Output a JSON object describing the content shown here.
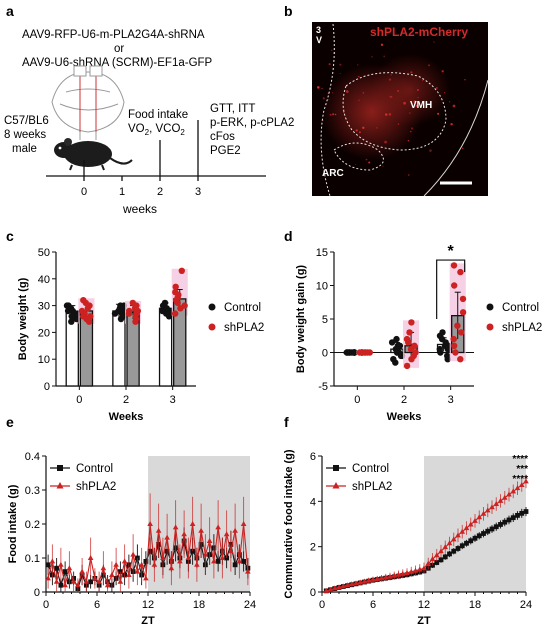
{
  "figure": {
    "panel_a": {
      "label": "a",
      "vector_line1": "AAV9-RFP-U6-m-PLA2G4A-shRNA",
      "vector_or": "or",
      "vector_line2": "AAV9-U6-shRNA (SCRM)-EF1a-GFP",
      "mouse_line1": "C57/BL6",
      "mouse_line2": "8 weeks",
      "mouse_line3": "male",
      "event_week2_line1": "Food intake",
      "event_week2_line2": "VO",
      "event_week2_line2b": "2",
      "event_week2_line2c": ", VCO",
      "event_week2_line2d": "2",
      "event_week3_line1": "GTT, ITT",
      "event_week3_line2": "p-ERK, p-cPLA2",
      "event_week3_line3": "cFos",
      "event_week3_line4": "PGE2",
      "timeline_ticks": [
        "0",
        "1",
        "2",
        "3"
      ],
      "timeline_label": "weeks"
    },
    "panel_b": {
      "label": "b",
      "title": "shPLA2-mCherry",
      "region_3v_a": "3",
      "region_3v_b": "V",
      "region_vmh": "VMH",
      "region_arc": "ARC"
    },
    "panel_c": {
      "label": "c"
    },
    "panel_d": {
      "label": "d",
      "significance": "*"
    },
    "panel_e": {
      "label": "e"
    },
    "panel_f": {
      "label": "f",
      "significance": [
        "****",
        "***",
        "****"
      ]
    },
    "colors": {
      "control": "#111111",
      "shpla2": "#cc2222",
      "shpla2_fill": "#f4c6de",
      "shade": "#d9d9d9",
      "bar_control": "#ffffff",
      "bar_shpla2": "#999999"
    }
  },
  "chart_data": [
    {
      "panel": "c",
      "type": "bar",
      "categories": [
        "0",
        "2",
        "3"
      ],
      "xlabel": "Weeks",
      "ylabel": "Body weight (g)",
      "ylim": [
        0,
        50
      ],
      "yticks": [
        0,
        10,
        20,
        30,
        40,
        50
      ],
      "legend_position": "right",
      "series": [
        {
          "name": "Control",
          "values": [
            27.5,
            28,
            29
          ],
          "error": [
            2.5,
            2.5,
            2
          ],
          "points": [
            [
              24,
              25,
              26,
              27,
              28,
              29,
              30,
              30,
              27,
              26,
              28
            ],
            [
              25,
              26,
              27,
              28,
              29,
              30,
              30,
              28,
              27,
              29,
              26
            ],
            [
              26,
              27,
              28,
              29,
              30,
              31,
              29,
              28,
              30,
              27,
              29
            ]
          ]
        },
        {
          "name": "shPLA2",
          "values": [
            28,
            27.5,
            32.5
          ],
          "error": [
            2.5,
            2.5,
            3.5
          ],
          "points": [
            [
              24,
              25,
              26,
              28,
              29,
              30,
              31,
              32,
              27,
              26
            ],
            [
              24,
              25,
              26,
              27,
              28,
              29,
              30,
              31,
              28,
              27
            ],
            [
              27,
              29,
              30,
              31,
              32,
              33,
              34,
              35,
              37,
              43
            ]
          ]
        }
      ]
    },
    {
      "panel": "d",
      "type": "bar",
      "categories": [
        "0",
        "2",
        "3"
      ],
      "xlabel": "Weeks",
      "ylabel": "Body weight gain (g)",
      "ylim": [
        -5,
        15
      ],
      "yticks": [
        -5,
        0,
        5,
        10,
        15
      ],
      "legend_position": "right",
      "series": [
        {
          "name": "Control",
          "values": [
            0,
            0.5,
            1.2
          ],
          "error": [
            0,
            1,
            1
          ],
          "points": [
            [
              0,
              0,
              0,
              0,
              0,
              0,
              0,
              0,
              0,
              0,
              0
            ],
            [
              -1.5,
              -1,
              -0.5,
              0,
              0.5,
              1,
              1.5,
              2,
              0,
              -0.5,
              1
            ],
            [
              -1,
              -0.5,
              0,
              0.5,
              1,
              1.5,
              2,
              2.5,
              3,
              1,
              0.5
            ]
          ]
        },
        {
          "name": "shPLA2",
          "values": [
            0,
            1,
            5.5
          ],
          "error": [
            0,
            2,
            3.5
          ],
          "points": [
            [
              0,
              0,
              0,
              0,
              0,
              0,
              0,
              0,
              0,
              0
            ],
            [
              -2,
              -1,
              -0.5,
              0,
              0.5,
              1,
              1.5,
              2,
              3,
              4.5
            ],
            [
              -1,
              0,
              1,
              2,
              3,
              4,
              6,
              8,
              10,
              12,
              13
            ]
          ]
        }
      ]
    },
    {
      "panel": "e",
      "type": "line",
      "xlabel": "ZT",
      "ylabel": "Food intake (g)",
      "xlim": [
        0,
        24
      ],
      "ylim": [
        0,
        0.4
      ],
      "xticks": [
        0,
        6,
        12,
        18,
        24
      ],
      "yticks": [
        0.0,
        0.1,
        0.2,
        0.3,
        0.4
      ],
      "dark_phase": [
        12,
        24
      ],
      "legend_position": "top-left",
      "x": [
        0.25,
        0.75,
        1.25,
        1.75,
        2.25,
        2.75,
        3.25,
        3.75,
        4.25,
        4.75,
        5.25,
        5.75,
        6.25,
        6.75,
        7.25,
        7.75,
        8.25,
        8.75,
        9.25,
        9.75,
        10.25,
        10.75,
        11.25,
        11.75,
        12.25,
        12.75,
        13.25,
        13.75,
        14.25,
        14.75,
        15.25,
        15.75,
        16.25,
        16.75,
        17.25,
        17.75,
        18.25,
        18.75,
        19.25,
        19.75,
        20.25,
        20.75,
        21.25,
        21.75,
        22.25,
        22.75,
        23.25,
        23.75
      ],
      "series": [
        {
          "name": "Control",
          "values": [
            0.08,
            0.05,
            0.07,
            0.02,
            0.06,
            0.03,
            0.04,
            0.01,
            0.05,
            0.02,
            0.03,
            0.04,
            0.02,
            0.05,
            0.03,
            0.02,
            0.04,
            0.06,
            0.05,
            0.08,
            0.06,
            0.1,
            0.05,
            0.09,
            0.12,
            0.1,
            0.14,
            0.08,
            0.12,
            0.09,
            0.13,
            0.1,
            0.15,
            0.09,
            0.12,
            0.1,
            0.14,
            0.08,
            0.11,
            0.13,
            0.09,
            0.12,
            0.1,
            0.14,
            0.08,
            0.11,
            0.09,
            0.07
          ],
          "error": [
            0.03,
            0.03,
            0.03,
            0.02,
            0.03,
            0.02,
            0.02,
            0.01,
            0.03,
            0.02,
            0.02,
            0.02,
            0.02,
            0.03,
            0.02,
            0.02,
            0.02,
            0.03,
            0.03,
            0.03,
            0.03,
            0.04,
            0.03,
            0.03,
            0.04,
            0.03,
            0.04,
            0.03,
            0.04,
            0.03,
            0.04,
            0.03,
            0.04,
            0.03,
            0.04,
            0.03,
            0.04,
            0.03,
            0.03,
            0.04,
            0.03,
            0.04,
            0.03,
            0.04,
            0.03,
            0.03,
            0.03,
            0.03
          ]
        },
        {
          "name": "shPLA2",
          "values": [
            0.04,
            0.09,
            0.03,
            0.08,
            0.02,
            0.07,
            0.03,
            0.02,
            0.06,
            0.03,
            0.1,
            0.04,
            0.03,
            0.07,
            0.02,
            0.05,
            0.08,
            0.03,
            0.09,
            0.05,
            0.11,
            0.06,
            0.08,
            0.04,
            0.2,
            0.08,
            0.18,
            0.1,
            0.16,
            0.07,
            0.19,
            0.09,
            0.17,
            0.1,
            0.2,
            0.08,
            0.18,
            0.11,
            0.15,
            0.09,
            0.19,
            0.1,
            0.17,
            0.12,
            0.18,
            0.09,
            0.2,
            0.06
          ],
          "error": [
            0.03,
            0.05,
            0.03,
            0.05,
            0.02,
            0.05,
            0.03,
            0.02,
            0.04,
            0.03,
            0.06,
            0.03,
            0.03,
            0.05,
            0.02,
            0.04,
            0.05,
            0.03,
            0.05,
            0.04,
            0.06,
            0.04,
            0.05,
            0.03,
            0.09,
            0.05,
            0.08,
            0.06,
            0.07,
            0.05,
            0.08,
            0.05,
            0.07,
            0.06,
            0.08,
            0.05,
            0.08,
            0.06,
            0.07,
            0.05,
            0.08,
            0.06,
            0.07,
            0.06,
            0.08,
            0.05,
            0.08,
            0.04
          ]
        }
      ]
    },
    {
      "panel": "f",
      "type": "line",
      "xlabel": "ZT",
      "ylabel": "Commurative food intake (g)",
      "xlim": [
        0,
        24
      ],
      "ylim": [
        0,
        6
      ],
      "xticks": [
        0,
        6,
        12,
        18,
        24
      ],
      "yticks": [
        0,
        2,
        4,
        6
      ],
      "dark_phase": [
        12,
        24
      ],
      "legend_position": "top-left",
      "x": [
        0.5,
        1,
        1.5,
        2,
        2.5,
        3,
        3.5,
        4,
        4.5,
        5,
        5.5,
        6,
        6.5,
        7,
        7.5,
        8,
        8.5,
        9,
        9.5,
        10,
        10.5,
        11,
        11.5,
        12,
        12.5,
        13,
        13.5,
        14,
        14.5,
        15,
        15.5,
        16,
        16.5,
        17,
        17.5,
        18,
        18.5,
        19,
        19.5,
        20,
        20.5,
        21,
        21.5,
        22,
        22.5,
        23,
        23.5,
        24
      ],
      "series": [
        {
          "name": "Control",
          "values": [
            0.05,
            0.1,
            0.15,
            0.2,
            0.24,
            0.28,
            0.32,
            0.36,
            0.4,
            0.44,
            0.48,
            0.52,
            0.55,
            0.58,
            0.61,
            0.64,
            0.67,
            0.7,
            0.73,
            0.76,
            0.8,
            0.84,
            0.88,
            0.93,
            1.05,
            1.18,
            1.3,
            1.42,
            1.55,
            1.68,
            1.8,
            1.92,
            2.04,
            2.15,
            2.26,
            2.37,
            2.48,
            2.58,
            2.68,
            2.78,
            2.88,
            2.98,
            3.08,
            3.18,
            3.28,
            3.38,
            3.47,
            3.55
          ],
          "error": [
            0.02,
            0.03,
            0.03,
            0.04,
            0.04,
            0.05,
            0.05,
            0.05,
            0.06,
            0.06,
            0.06,
            0.07,
            0.07,
            0.07,
            0.07,
            0.08,
            0.08,
            0.08,
            0.08,
            0.09,
            0.09,
            0.09,
            0.1,
            0.1,
            0.11,
            0.12,
            0.12,
            0.13,
            0.13,
            0.14,
            0.14,
            0.15,
            0.15,
            0.15,
            0.16,
            0.16,
            0.16,
            0.17,
            0.17,
            0.17,
            0.18,
            0.18,
            0.18,
            0.19,
            0.19,
            0.19,
            0.2,
            0.2
          ]
        },
        {
          "name": "shPLA2",
          "values": [
            0.05,
            0.1,
            0.16,
            0.21,
            0.25,
            0.3,
            0.34,
            0.38,
            0.42,
            0.46,
            0.5,
            0.54,
            0.57,
            0.6,
            0.64,
            0.68,
            0.72,
            0.76,
            0.8,
            0.84,
            0.89,
            0.94,
            0.99,
            1.05,
            1.25,
            1.45,
            1.62,
            1.8,
            1.98,
            2.15,
            2.32,
            2.5,
            2.66,
            2.82,
            2.98,
            3.14,
            3.3,
            3.45,
            3.6,
            3.74,
            3.88,
            4.02,
            4.16,
            4.3,
            4.44,
            4.58,
            4.72,
            4.88
          ],
          "error": [
            0.03,
            0.04,
            0.05,
            0.06,
            0.07,
            0.08,
            0.09,
            0.1,
            0.11,
            0.12,
            0.13,
            0.14,
            0.14,
            0.15,
            0.16,
            0.17,
            0.18,
            0.19,
            0.2,
            0.21,
            0.22,
            0.23,
            0.24,
            0.25,
            0.26,
            0.27,
            0.28,
            0.28,
            0.29,
            0.29,
            0.3,
            0.3,
            0.3,
            0.3,
            0.3,
            0.3,
            0.3,
            0.3,
            0.3,
            0.3,
            0.3,
            0.3,
            0.3,
            0.3,
            0.3,
            0.3,
            0.3,
            0.3
          ]
        }
      ]
    }
  ]
}
